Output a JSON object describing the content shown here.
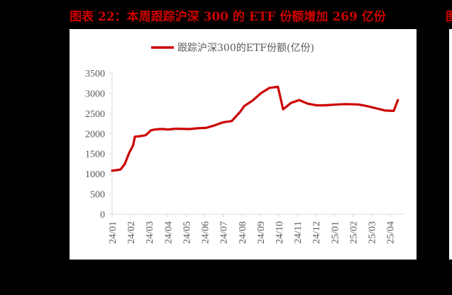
{
  "figure": {
    "title": "图表 22：本周跟踪沪深 300 的 ETF 份额增加 269 亿份",
    "title_color": "#cc0000",
    "adjacent_title_fragment": "图"
  },
  "chart_data": {
    "type": "line",
    "title": "",
    "xlabel": "",
    "ylabel": "",
    "ylim": [
      0,
      3500
    ],
    "yticks": [
      0,
      500,
      1000,
      1500,
      2000,
      2500,
      3000,
      3500
    ],
    "grid": false,
    "legend_position": "top",
    "categories": [
      "24/01",
      "24/02",
      "24/03",
      "24/04",
      "24/05",
      "24/06",
      "24/07",
      "24/08",
      "24/09",
      "24/10",
      "24/11",
      "24/12",
      "25/01",
      "25/02",
      "25/03",
      "25/04"
    ],
    "series": [
      {
        "name": "跟踪沪深300的ETF份额(亿份)",
        "color": "#cc0000",
        "x": [
          "24/01-01",
          "24/01-08",
          "24/01-15",
          "24/01-22",
          "24/01-29",
          "24/02-05",
          "24/02-08",
          "24/02-19",
          "24/02-26",
          "24/03-04",
          "24/03-11",
          "24/03-18",
          "24/03-25",
          "24/04-01",
          "24/04-15",
          "24/05-06",
          "24/05-20",
          "24/06-03",
          "24/06-17",
          "24/07-01",
          "24/07-15",
          "24/07-29",
          "24/08-05",
          "24/08-19",
          "24/09-02",
          "24/09-16",
          "24/09-30",
          "24/10-08",
          "24/10-21",
          "24/11-04",
          "24/11-18",
          "24/12-02",
          "24/12-16",
          "25/01-06",
          "25/01-20",
          "25/02-10",
          "25/02-24",
          "25/03-10",
          "25/03-24",
          "25/04-07",
          "25/04-14"
        ],
        "values": [
          1080,
          1090,
          1110,
          1250,
          1520,
          1700,
          1920,
          1940,
          1960,
          2080,
          2100,
          2110,
          2110,
          2100,
          2120,
          2110,
          2130,
          2140,
          2200,
          2280,
          2310,
          2540,
          2680,
          2820,
          3000,
          3130,
          3160,
          2600,
          2760,
          2830,
          2740,
          2700,
          2700,
          2720,
          2730,
          2720,
          2680,
          2620,
          2570,
          2560,
          2830
        ]
      }
    ]
  },
  "legend": {
    "label": "跟踪沪深300的ETF份额(亿份)"
  }
}
